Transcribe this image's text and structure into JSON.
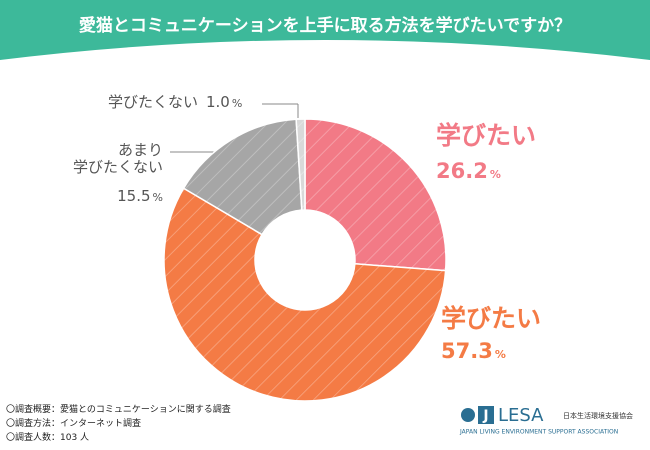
{
  "chart_data": {
    "type": "donut",
    "title": "愛猫とコミュニケーションを上手に取る方法を学びたいですか？",
    "categories": [
      "学びたい",
      "学びたい",
      "あまり\n学びたくない",
      "学びたくない"
    ],
    "values": [
      26.2,
      57.3,
      15.5,
      1.0
    ],
    "value_labels": [
      "26.2",
      "57.3",
      "15.5",
      "1.0"
    ],
    "unit": "%",
    "colors": [
      "#f27a86",
      "#f47b45",
      "#a6a6a6",
      "#d9d9d9"
    ],
    "hatch": true
  },
  "notes": [
    "〇調査概要：愛猫とのコミュニケーションに関する調査",
    "〇調査方法：インターネット調査",
    "〇調査人数：103 人"
  ],
  "logo": {
    "mark": "J",
    "name": "LESA",
    "org": "日本生活環境支援協会",
    "org_en": "JAPAN LIVING ENVIRONMENT SUPPORT ASSOCIATION"
  }
}
